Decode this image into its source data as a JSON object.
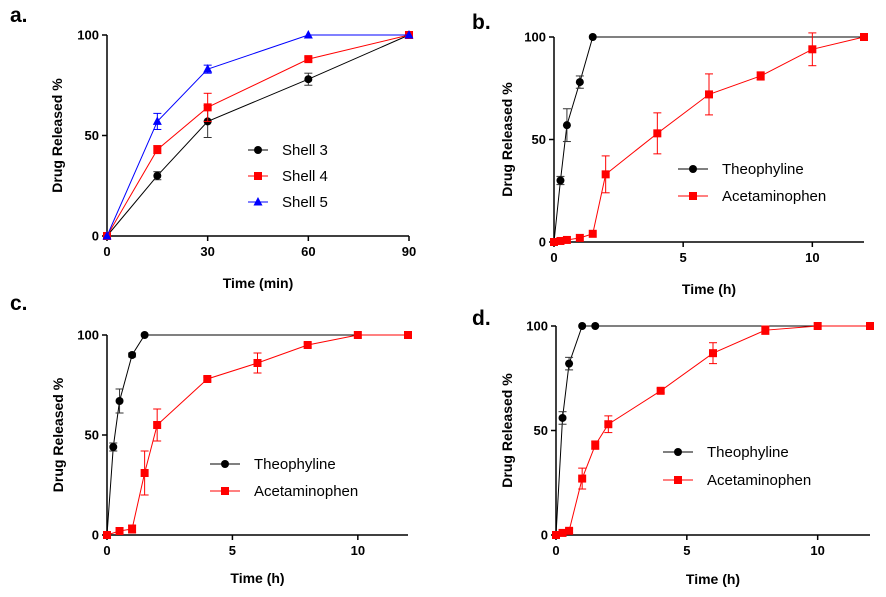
{
  "chart_data": [
    {
      "panel": "a.",
      "type": "line",
      "xlabel": "Time (min)",
      "ylabel": "Drug Released %",
      "xlim": [
        0,
        90
      ],
      "ylim": [
        0,
        100
      ],
      "xticks": [
        0,
        30,
        60,
        90
      ],
      "yticks": [
        0,
        50,
        100
      ],
      "grid": false,
      "legend": "center-right",
      "series": [
        {
          "name": "Shell 3",
          "color": "#000000",
          "marker": "circle",
          "x": [
            0,
            15,
            30,
            60,
            90
          ],
          "y": [
            0,
            30,
            57,
            78,
            100
          ],
          "err": [
            0,
            2,
            8,
            3,
            0
          ]
        },
        {
          "name": "Shell 4",
          "color": "#ff0000",
          "marker": "square",
          "x": [
            0,
            15,
            30,
            60,
            90
          ],
          "y": [
            0,
            43,
            64,
            88,
            100
          ],
          "err": [
            0,
            2,
            7,
            1,
            0
          ]
        },
        {
          "name": "Shell 5",
          "color": "#0000ff",
          "marker": "triangle",
          "x": [
            0,
            15,
            30,
            60,
            90
          ],
          "y": [
            0,
            57,
            83,
            100,
            100
          ],
          "err": [
            0,
            4,
            2,
            0,
            0
          ]
        }
      ]
    },
    {
      "panel": "b.",
      "type": "line",
      "xlabel": "Time (h)",
      "ylabel": "Drug Released %",
      "xlim": [
        0,
        12
      ],
      "ylim": [
        0,
        100
      ],
      "xticks": [
        0,
        5,
        10
      ],
      "yticks": [
        0,
        50,
        100
      ],
      "grid": false,
      "legend": "center-right",
      "series": [
        {
          "name": "Theophyline",
          "color": "#000000",
          "marker": "circle",
          "x": [
            0,
            0.25,
            0.5,
            1,
            1.5,
            12
          ],
          "y": [
            0,
            30,
            57,
            78,
            100,
            100
          ],
          "err": [
            0,
            2,
            8,
            3,
            0,
            0
          ]
        },
        {
          "name": "Acetaminophen",
          "color": "#ff0000",
          "marker": "square",
          "x": [
            0,
            0.25,
            0.5,
            1,
            1.5,
            2,
            4,
            6,
            8,
            10,
            12
          ],
          "y": [
            0,
            0.5,
            1,
            2,
            4,
            33,
            53,
            72,
            81,
            94,
            100
          ],
          "err": [
            0,
            0,
            0,
            0,
            0,
            9,
            10,
            10,
            2,
            8,
            0
          ]
        }
      ]
    },
    {
      "panel": "c.",
      "type": "line",
      "xlabel": "Time (h)",
      "ylabel": "Drug Released %",
      "xlim": [
        0,
        12
      ],
      "ylim": [
        0,
        100
      ],
      "xticks": [
        0,
        5,
        10
      ],
      "yticks": [
        0,
        50,
        100
      ],
      "grid": false,
      "legend": "center-right",
      "series": [
        {
          "name": "Theophyline",
          "color": "#000000",
          "marker": "circle",
          "x": [
            0,
            0.25,
            0.5,
            1,
            1.5,
            12
          ],
          "y": [
            0,
            44,
            67,
            90,
            100,
            100
          ],
          "err": [
            0,
            2,
            6,
            1,
            0,
            0
          ]
        },
        {
          "name": "Acetaminophen",
          "color": "#ff0000",
          "marker": "square",
          "x": [
            0,
            0.5,
            1,
            1.5,
            2,
            4,
            6,
            8,
            10,
            12
          ],
          "y": [
            0,
            2,
            3,
            31,
            55,
            78,
            86,
            95,
            100,
            100
          ],
          "err": [
            0,
            0,
            2,
            11,
            8,
            1,
            5,
            1,
            0,
            0
          ]
        }
      ]
    },
    {
      "panel": "d.",
      "type": "line",
      "xlabel": "Time (h)",
      "ylabel": "Drug Released %",
      "xlim": [
        0,
        12
      ],
      "ylim": [
        0,
        100
      ],
      "xticks": [
        0,
        5,
        10
      ],
      "yticks": [
        0,
        50,
        100
      ],
      "grid": false,
      "legend": "center-right",
      "series": [
        {
          "name": "Theophyline",
          "color": "#000000",
          "marker": "circle",
          "x": [
            0,
            0.25,
            0.5,
            1,
            1.5,
            12
          ],
          "y": [
            0,
            56,
            82,
            100,
            100,
            100
          ],
          "err": [
            0,
            3,
            3,
            0,
            0,
            0
          ]
        },
        {
          "name": "Acetaminophen",
          "color": "#ff0000",
          "marker": "square",
          "x": [
            0,
            0.25,
            0.5,
            1,
            1.5,
            2,
            4,
            6,
            8,
            10,
            12
          ],
          "y": [
            0,
            1,
            2,
            27,
            43,
            53,
            69,
            87,
            98,
            100,
            100
          ],
          "err": [
            0,
            0,
            1,
            5,
            2,
            4,
            1,
            5,
            2,
            0,
            0
          ]
        }
      ]
    }
  ]
}
